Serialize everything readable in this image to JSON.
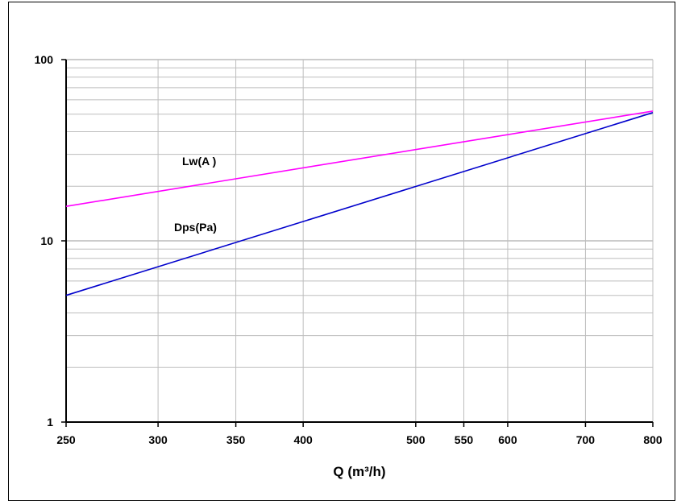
{
  "chart_data": {
    "type": "line",
    "title": "",
    "xlabel": "Q (m³/h)",
    "ylabel": "",
    "x_scale": "log",
    "y_scale": "log",
    "xlim": [
      250,
      800
    ],
    "ylim": [
      1,
      100
    ],
    "grid": true,
    "x_ticks": [
      250,
      300,
      350,
      400,
      500,
      550,
      600,
      700,
      800
    ],
    "y_ticks": [
      1,
      10,
      100
    ],
    "y_minor_ticks": [
      2,
      3,
      4,
      5,
      6,
      7,
      8,
      9,
      20,
      30,
      40,
      50,
      60,
      70,
      80,
      90
    ],
    "series": [
      {
        "name": "Lw(A )",
        "color": "#ff00ff",
        "x": [
          250,
          800
        ],
        "y": [
          15.5,
          52
        ]
      },
      {
        "name": "Dps(Pa)",
        "color": "#0000cc",
        "x": [
          250,
          800
        ],
        "y": [
          5,
          51
        ]
      }
    ]
  }
}
